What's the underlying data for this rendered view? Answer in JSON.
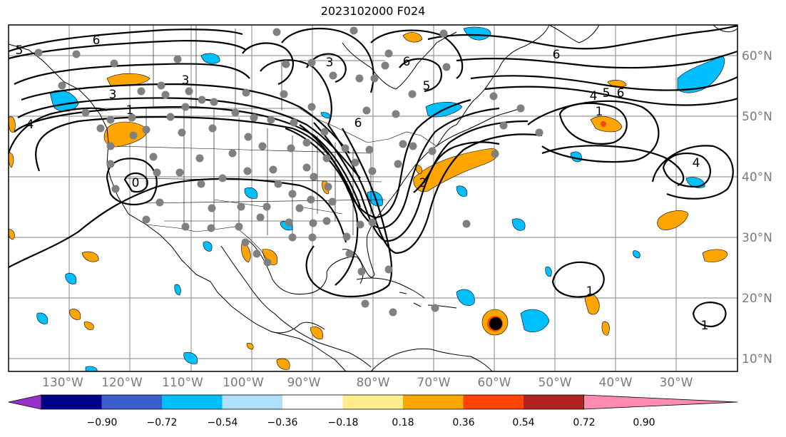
{
  "title": "2023102000 F024",
  "lon_ticks": [
    "130°W",
    "120°W",
    "110°W",
    "100°W",
    "90°W",
    "80°W",
    "70°W",
    "60°W",
    "50°W",
    "40°W",
    "30°W"
  ],
  "lat_ticks": [
    "60°N",
    "50°N",
    "40°N",
    "30°N",
    "20°N",
    "10°N"
  ],
  "colorbar": {
    "labels": [
      "−0.90",
      "−0.72",
      "−0.54",
      "−0.36",
      "−0.18",
      "0.18",
      "0.36",
      "0.54",
      "0.72",
      "0.90"
    ],
    "colors": [
      "#9932cc",
      "#00008b",
      "#3a5fcd",
      "#00bfff",
      "#b0e0ff",
      "#ffffff",
      "#ffec8b",
      "#ffa500",
      "#ff4500",
      "#b22222",
      "#ff8ab0"
    ]
  },
  "contour_labels": [
    "6",
    "5",
    "3",
    "3",
    "1",
    "4",
    "0",
    "3",
    "6",
    "5",
    "6",
    "6",
    "4",
    "5",
    "6",
    "1",
    "4",
    "2",
    "1",
    "1"
  ],
  "colors": {
    "grid": "#9a9a9a",
    "station_dot": "#808080",
    "storm_center": "#000000"
  }
}
